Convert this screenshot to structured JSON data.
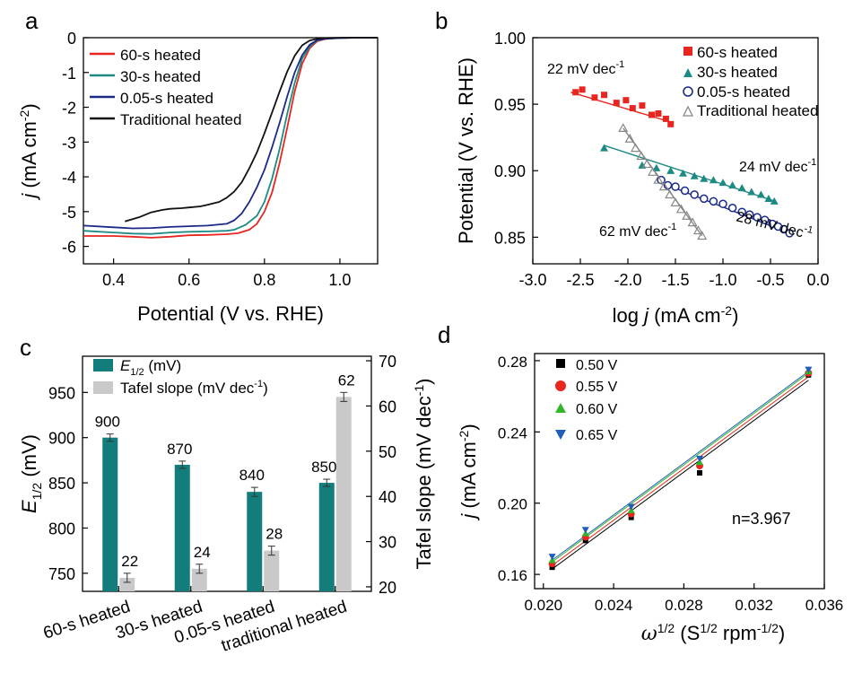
{
  "chart_data": [
    {
      "panel": "a",
      "type": "line",
      "xlabel": "Potential (V vs. RHE)",
      "ylabel_parts": [
        "j",
        " (mA cm",
        "-2",
        ")"
      ],
      "xlim": [
        0.32,
        1.1
      ],
      "ylim": [
        -6.5,
        0
      ],
      "xticks": [
        0.4,
        0.6,
        0.8,
        1.0
      ],
      "xtick_labels": [
        "0.4",
        "0.6",
        "0.8",
        "1.0"
      ],
      "yticks": [
        0,
        -1,
        -2,
        -3,
        -4,
        -5,
        -6
      ],
      "ytick_labels": [
        "0",
        "-1",
        "-2",
        "-3",
        "-4",
        "-5",
        "-6"
      ],
      "legend_position": "top-left",
      "series": [
        {
          "name": "60-s heated",
          "color": "#e8261f",
          "x": [
            0.32,
            0.4,
            0.45,
            0.5,
            0.55,
            0.6,
            0.65,
            0.7,
            0.73,
            0.76,
            0.78,
            0.8,
            0.82,
            0.84,
            0.86,
            0.88,
            0.9,
            0.92,
            0.94,
            0.96,
            0.98,
            1.0,
            1.05,
            1.1
          ],
          "y": [
            -5.7,
            -5.7,
            -5.72,
            -5.75,
            -5.72,
            -5.68,
            -5.67,
            -5.65,
            -5.62,
            -5.52,
            -5.35,
            -5.0,
            -4.45,
            -3.6,
            -2.6,
            -1.55,
            -0.75,
            -0.3,
            -0.1,
            -0.04,
            -0.02,
            -0.01,
            0,
            0
          ]
        },
        {
          "name": "30-s heated",
          "color": "#1d8a84",
          "x": [
            0.32,
            0.4,
            0.45,
            0.5,
            0.55,
            0.6,
            0.65,
            0.7,
            0.72,
            0.75,
            0.78,
            0.8,
            0.82,
            0.84,
            0.86,
            0.88,
            0.9,
            0.92,
            0.94,
            0.96,
            1.0,
            1.05,
            1.1
          ],
          "y": [
            -5.55,
            -5.6,
            -5.63,
            -5.64,
            -5.6,
            -5.58,
            -5.57,
            -5.55,
            -5.52,
            -5.38,
            -5.12,
            -4.72,
            -4.05,
            -3.2,
            -2.2,
            -1.3,
            -0.6,
            -0.25,
            -0.08,
            -0.03,
            -0.01,
            0,
            0
          ]
        },
        {
          "name": "0.05-s heated",
          "color": "#1a2a86",
          "x": [
            0.32,
            0.4,
            0.45,
            0.5,
            0.55,
            0.6,
            0.65,
            0.7,
            0.72,
            0.74,
            0.76,
            0.78,
            0.8,
            0.82,
            0.84,
            0.86,
            0.88,
            0.9,
            0.92,
            0.94,
            0.96,
            1.0,
            1.05,
            1.1
          ],
          "y": [
            -5.4,
            -5.45,
            -5.48,
            -5.47,
            -5.44,
            -5.42,
            -5.4,
            -5.35,
            -5.25,
            -5.05,
            -4.72,
            -4.3,
            -3.8,
            -3.15,
            -2.45,
            -1.7,
            -1.0,
            -0.5,
            -0.2,
            -0.07,
            -0.03,
            -0.01,
            0,
            0
          ]
        },
        {
          "name": "Traditional heated",
          "color": "#111111",
          "x": [
            0.43,
            0.47,
            0.5,
            0.53,
            0.55,
            0.58,
            0.6,
            0.63,
            0.65,
            0.68,
            0.7,
            0.72,
            0.74,
            0.76,
            0.78,
            0.8,
            0.82,
            0.84,
            0.86,
            0.88,
            0.9,
            0.92,
            0.94,
            0.96,
            1.0,
            1.05,
            1.1
          ],
          "y": [
            -5.28,
            -5.15,
            -5.02,
            -4.95,
            -4.92,
            -4.9,
            -4.88,
            -4.85,
            -4.8,
            -4.72,
            -4.6,
            -4.42,
            -4.15,
            -3.75,
            -3.3,
            -2.75,
            -2.15,
            -1.55,
            -0.98,
            -0.52,
            -0.22,
            -0.08,
            -0.03,
            -0.01,
            0,
            0,
            0
          ]
        }
      ]
    },
    {
      "panel": "b",
      "type": "scatter",
      "xlabel_parts": [
        "log ",
        "j",
        " (mA cm",
        "-2",
        ")"
      ],
      "ylabel": "Potential (V vs. RHE)",
      "xlim": [
        -3.0,
        0.0
      ],
      "ylim": [
        0.83,
        1.0
      ],
      "xticks": [
        -3.0,
        -2.5,
        -2.0,
        -1.5,
        -1.0,
        -0.5,
        0.0
      ],
      "xtick_labels": [
        "-3.0",
        "-2.5",
        "-2.0",
        "-1.5",
        "-1.0",
        "-0.5",
        "0.0"
      ],
      "yticks": [
        0.85,
        0.9,
        0.95,
        1.0
      ],
      "ytick_labels": [
        "0.85",
        "0.90",
        "0.95",
        "1.00"
      ],
      "legend_position": "top-right",
      "series": [
        {
          "name": "60-s heated",
          "marker": "square",
          "color": "#e8261f",
          "x": [
            -2.55,
            -2.48,
            -2.35,
            -2.25,
            -2.12,
            -2.02,
            -1.95,
            -1.85,
            -1.75,
            -1.68,
            -1.6,
            -1.55
          ],
          "y": [
            0.959,
            0.961,
            0.955,
            0.957,
            0.951,
            0.953,
            0.947,
            0.949,
            0.942,
            0.943,
            0.939,
            0.935
          ],
          "fit": {
            "x1": -2.6,
            "y1": 0.959,
            "x2": -1.52,
            "y2": 0.936,
            "label": [
              "22 mV dec",
              "-1"
            ]
          }
        },
        {
          "name": "30-s heated",
          "marker": "triangle-up",
          "color": "#1d8a84",
          "x": [
            -2.25,
            -1.85,
            -1.7,
            -1.55,
            -1.42,
            -1.3,
            -1.2,
            -1.1,
            -1.0,
            -0.9,
            -0.8,
            -0.7,
            -0.6,
            -0.52,
            -0.46
          ],
          "y": [
            0.917,
            0.904,
            0.902,
            0.9,
            0.898,
            0.896,
            0.894,
            0.893,
            0.891,
            0.889,
            0.887,
            0.884,
            0.882,
            0.879,
            0.877
          ],
          "fit": {
            "x1": -2.25,
            "y1": 0.919,
            "x2": -0.45,
            "y2": 0.877,
            "label": [
              "24 mV dec",
              "-1"
            ]
          }
        },
        {
          "name": "0.05-s heated",
          "marker": "circle-half",
          "color": "#1a2a86",
          "x": [
            -1.65,
            -1.58,
            -1.5,
            -1.4,
            -1.3,
            -1.2,
            -1.1,
            -1.0,
            -0.9,
            -0.8,
            -0.72,
            -0.64,
            -0.56,
            -0.48,
            -0.42,
            -0.36,
            -0.3
          ],
          "y": [
            0.893,
            0.889,
            0.888,
            0.885,
            0.882,
            0.879,
            0.877,
            0.875,
            0.872,
            0.869,
            0.867,
            0.865,
            0.863,
            0.86,
            0.858,
            0.856,
            0.853
          ],
          "fit": {
            "x1": -1.65,
            "y1": 0.891,
            "x2": -0.3,
            "y2": 0.853,
            "label": [
              "28 mV dec",
              "-1"
            ]
          }
        },
        {
          "name": "Traditional heated",
          "marker": "triangle-open",
          "color": "#888888",
          "x": [
            -2.05,
            -1.98,
            -1.92,
            -1.86,
            -1.8,
            -1.74,
            -1.68,
            -1.62,
            -1.56,
            -1.5,
            -1.44,
            -1.38,
            -1.32,
            -1.26,
            -1.22
          ],
          "y": [
            0.932,
            0.924,
            0.917,
            0.911,
            0.905,
            0.899,
            0.893,
            0.888,
            0.882,
            0.876,
            0.871,
            0.866,
            0.861,
            0.855,
            0.851
          ],
          "fit": {
            "x1": -2.05,
            "y1": 0.932,
            "x2": -1.22,
            "y2": 0.851,
            "label": [
              "62 mV dec",
              "-1"
            ]
          }
        }
      ]
    },
    {
      "panel": "c",
      "type": "bar",
      "categories": [
        "60-s heated",
        "30-s heated",
        "0.05-s heated",
        "traditional heated"
      ],
      "ylabel_left_parts": [
        "E",
        "1/2",
        " (mV)"
      ],
      "ylabel_right_parts": [
        "Tafel slope (mV dec",
        "-1",
        ")"
      ],
      "ylim_left": [
        730,
        990
      ],
      "ylim_right": [
        19,
        71
      ],
      "yticks_left": [
        750,
        800,
        850,
        900,
        950
      ],
      "ytick_labels_left": [
        "750",
        "800",
        "850",
        "900",
        "950"
      ],
      "yticks_right": [
        20,
        30,
        40,
        50,
        60,
        70
      ],
      "ytick_labels_right": [
        "20",
        "30",
        "40",
        "50",
        "60",
        "70"
      ],
      "legend_position": "top-left",
      "series": [
        {
          "name_parts": [
            "E",
            "1/2",
            " (mV)"
          ],
          "axis": "left",
          "color": "#127d7b",
          "values": [
            900,
            870,
            840,
            850
          ],
          "errors": [
            4,
            4,
            5,
            4
          ],
          "value_labels": [
            "900",
            "870",
            "840",
            "850"
          ]
        },
        {
          "name_parts": [
            "Tafel slope (mV dec",
            "-1",
            ")"
          ],
          "axis": "right",
          "color": "#c9c9c9",
          "values": [
            22,
            24,
            28,
            62
          ],
          "errors": [
            1,
            1,
            1,
            1
          ],
          "value_labels": [
            "22",
            "24",
            "28",
            "62"
          ]
        }
      ]
    },
    {
      "panel": "d",
      "type": "scatter",
      "xlabel_parts": [
        "ω",
        "1/2",
        " (S",
        "1/2",
        " rpm",
        "-1/2",
        ")"
      ],
      "ylabel_parts": [
        "j",
        " (mA cm",
        "-2",
        ")"
      ],
      "xlim": [
        0.0195,
        0.036
      ],
      "ylim": [
        0.152,
        0.284
      ],
      "xticks": [
        0.02,
        0.024,
        0.028,
        0.032,
        0.036
      ],
      "xtick_labels": [
        "0.020",
        "0.024",
        "0.028",
        "0.032",
        "0.036"
      ],
      "yticks": [
        0.16,
        0.2,
        0.24,
        0.28
      ],
      "ytick_labels": [
        "0.16",
        "0.20",
        "0.24",
        "0.28"
      ],
      "legend_position": "top-left",
      "annotation": "n=3.967",
      "x": [
        0.0205,
        0.0224,
        0.025,
        0.0289,
        0.0351
      ],
      "series": [
        {
          "name": "0.50 V",
          "marker": "square",
          "color": "#000000",
          "y": [
            0.164,
            0.179,
            0.192,
            0.217,
            0.272
          ],
          "fit": [
            0.163,
            0.269
          ]
        },
        {
          "name": "0.55 V",
          "marker": "circle",
          "color": "#e8261f",
          "y": [
            0.166,
            0.181,
            0.194,
            0.221,
            0.273
          ],
          "fit": [
            0.165,
            0.271
          ]
        },
        {
          "name": "0.60 V",
          "marker": "triangle-up",
          "color": "#33b52a",
          "y": [
            0.168,
            0.183,
            0.196,
            0.223,
            0.274
          ],
          "fit": [
            0.167,
            0.273
          ]
        },
        {
          "name": "0.65 V",
          "marker": "triangle-down",
          "color": "#1f5fb8",
          "y": [
            0.17,
            0.185,
            0.198,
            0.225,
            0.275
          ],
          "fit": [
            0.168,
            0.274
          ]
        }
      ]
    }
  ],
  "panel_labels": [
    "a",
    "b",
    "c",
    "d"
  ]
}
